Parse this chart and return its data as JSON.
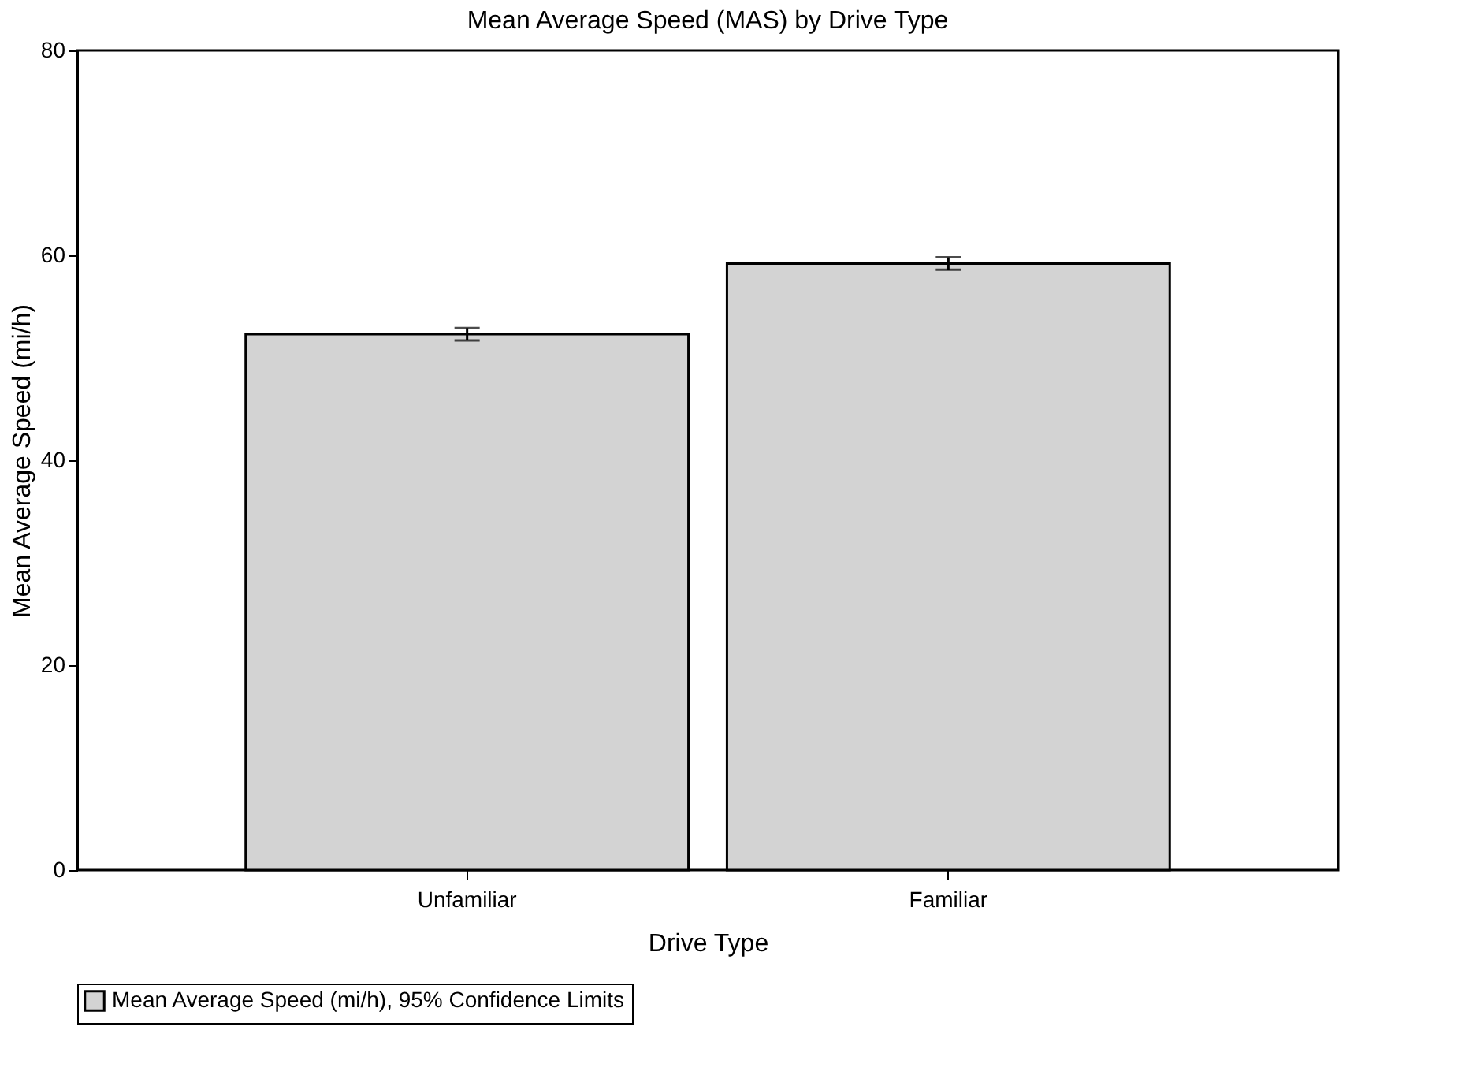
{
  "chart_data": {
    "type": "bar",
    "title": "Mean Average Speed (MAS) by Drive Type",
    "xlabel": "Drive Type",
    "ylabel": "Mean Average Speed (mi/h)",
    "categories": [
      "Unfamiliar",
      "Familiar"
    ],
    "series": [
      {
        "name": "Mean Average Speed (mi/h), 95% Confidence Limits",
        "color": "#d3d3d3",
        "values": [
          52.3,
          59.2
        ],
        "errors": [
          0.6,
          0.6
        ]
      }
    ],
    "ylim": [
      0,
      80
    ],
    "yticks": [
      0,
      20,
      40,
      60,
      80
    ],
    "grid": false,
    "legend": "bottom"
  }
}
